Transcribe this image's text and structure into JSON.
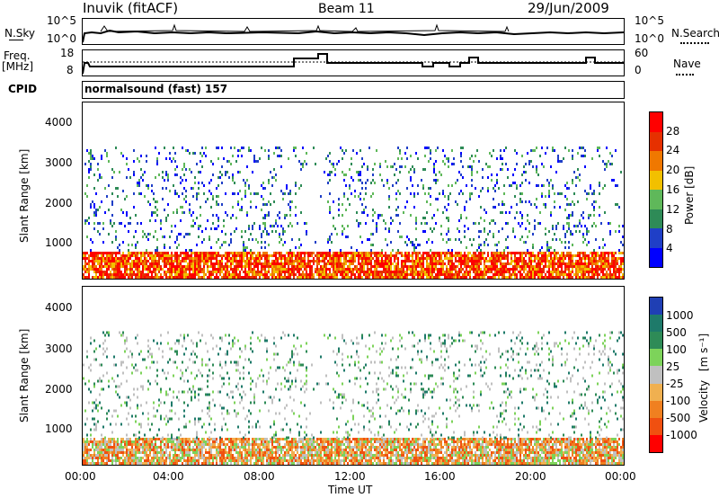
{
  "header": {
    "station": "Inuvik (fitACF)",
    "beam": "Beam 11",
    "date": "29/Jun/2009"
  },
  "left_labels": {
    "nsky": "N.Sky",
    "freq": "Freq.",
    "freq_unit": "[MHz]",
    "cpid": "CPID",
    "cpid_value": "normalsound (fast) 157"
  },
  "right_labels": {
    "nsearch": "N.Search",
    "nave": "Nave"
  },
  "colors": {
    "power": [
      "#0000ff",
      "#1f3fc7",
      "#2e8b57",
      "#5fb85a",
      "#f2c000",
      "#f07800",
      "#e63000",
      "#ff0000"
    ],
    "velocity": [
      "#1f3fb4",
      "#1e7a6a",
      "#2e8b57",
      "#7dd35a",
      "#c0c0c0",
      "#f0b050",
      "#f08020",
      "#f05010",
      "#ff0000"
    ]
  },
  "chart_data": [
    {
      "type": "line",
      "name": "noise",
      "yticks_left": [
        "10^5",
        "10^0"
      ],
      "yticks_right": [
        "10^5",
        "10^0"
      ],
      "series": [
        {
          "name": "N.Sky",
          "style": "solid"
        },
        {
          "name": "N.Search",
          "style": "dotted"
        }
      ]
    },
    {
      "type": "line",
      "name": "frequency",
      "yticks_left": [
        18,
        8
      ],
      "yticks_right": [
        60,
        0
      ],
      "series": [
        {
          "name": "Freq.",
          "style": "solid"
        },
        {
          "name": "Nave",
          "style": "dotted"
        }
      ]
    },
    {
      "type": "heatmap",
      "name": "power",
      "ylabel": "Slant Range [km]",
      "yticks": [
        1000,
        2000,
        3000,
        4000
      ],
      "colorbar_label": "Power [dB]",
      "colorbar_ticks": [
        4,
        8,
        12,
        16,
        20,
        24,
        28
      ]
    },
    {
      "type": "heatmap",
      "name": "velocity",
      "ylabel": "Slant Range [km]",
      "yticks": [
        1000,
        2000,
        3000,
        4000
      ],
      "xticks": [
        "00:00",
        "04:00",
        "08:00",
        "12:00",
        "16:00",
        "20:00",
        "00:00"
      ],
      "xlabel": "Time UT",
      "colorbar_label": "Velocity",
      "colorbar_unit": "[m s⁻¹]",
      "colorbar_ticks": [
        "1000",
        "500",
        "100",
        "25",
        "-25",
        "-100",
        "-500",
        "-1000"
      ]
    }
  ]
}
